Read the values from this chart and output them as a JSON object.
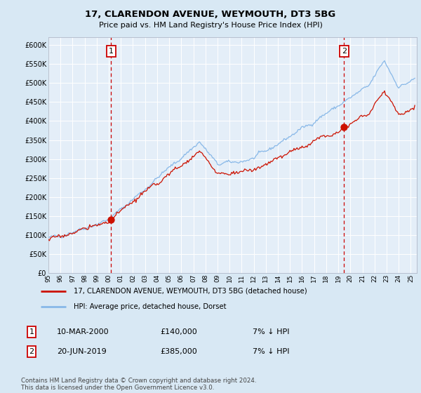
{
  "title": "17, CLARENDON AVENUE, WEYMOUTH, DT3 5BG",
  "subtitle": "Price paid vs. HM Land Registry's House Price Index (HPI)",
  "legend_line1": "17, CLARENDON AVENUE, WEYMOUTH, DT3 5BG (detached house)",
  "legend_line2": "HPI: Average price, detached house, Dorset",
  "transaction1_date": "10-MAR-2000",
  "transaction1_price": "£140,000",
  "transaction1_hpi": "7% ↓ HPI",
  "transaction2_date": "20-JUN-2019",
  "transaction2_price": "£385,000",
  "transaction2_hpi": "7% ↓ HPI",
  "footer": "Contains HM Land Registry data © Crown copyright and database right 2024.\nThis data is licensed under the Open Government Licence v3.0.",
  "bg_color": "#d8e8f4",
  "plot_bg_color": "#e4eef8",
  "grid_color": "#ffffff",
  "red_line_color": "#cc1100",
  "blue_line_color": "#88b8e8",
  "vline_color": "#cc0000",
  "marker_color": "#cc1100",
  "box_edge_color": "#cc0000",
  "ylim": [
    0,
    620000
  ],
  "yticks": [
    0,
    50000,
    100000,
    150000,
    200000,
    250000,
    300000,
    350000,
    400000,
    450000,
    500000,
    550000,
    600000
  ],
  "transaction1_year": 2000.19,
  "transaction2_year": 2019.47,
  "price1": 140000,
  "price2": 385000
}
